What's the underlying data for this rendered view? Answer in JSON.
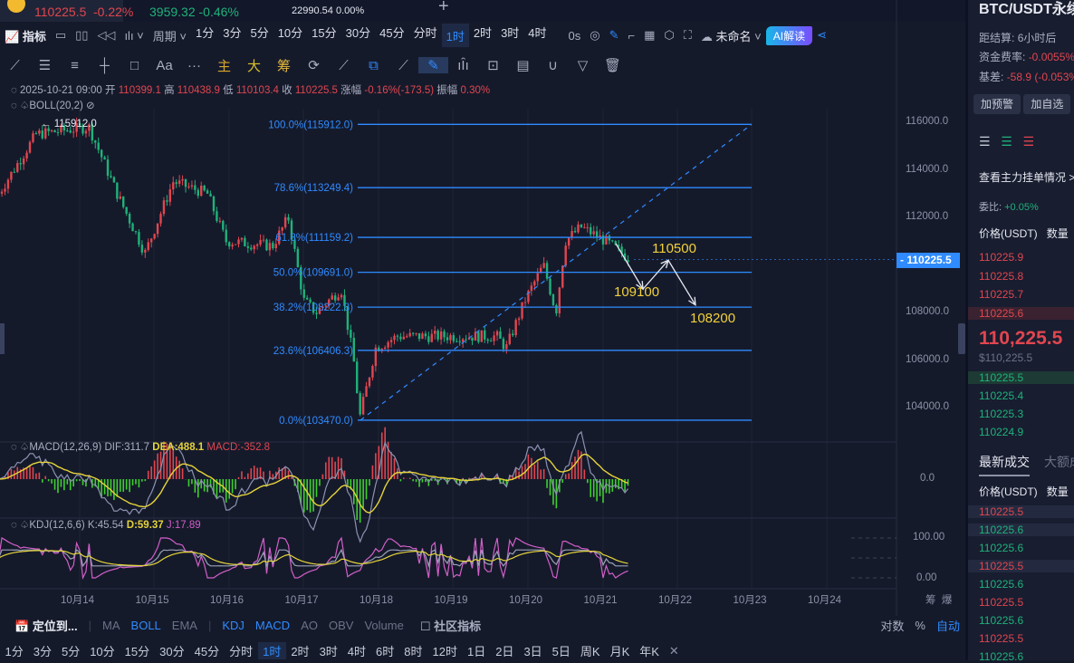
{
  "tabs": [
    {
      "price": "110225.5",
      "change": "-0.22%"
    },
    {
      "price": "3959.32",
      "change": "-0.46%"
    },
    {
      "price": "22990.54",
      "change": "0.00%"
    }
  ],
  "toolbar": {
    "indicator": "指标",
    "period": "周期",
    "timeframes": [
      "1分",
      "3分",
      "5分",
      "10分",
      "15分",
      "30分",
      "45分",
      "分时",
      "1时",
      "2时",
      "3时",
      "4时"
    ],
    "active": "1时",
    "countdown": "0s",
    "layout_name": "未命名",
    "ai": "AI解读"
  },
  "drawing_tools": {
    "main": "主",
    "big": "大",
    "chips": "筹",
    "text": "Aa",
    "more": "···"
  },
  "ohlc": {
    "date": "2025-10-21 09:00",
    "open_label": "开",
    "open": "110399.1",
    "high_label": "高",
    "high": "110438.9",
    "low_label": "低",
    "low": "110103.4",
    "close_label": "收",
    "close": "110225.5",
    "change_label": "涨幅",
    "change": "-0.16%(-173.5)",
    "amp_label": "振幅",
    "amp": "0.30%"
  },
  "boll": "BOLL(20,2)",
  "high_marker": "115912.0",
  "fib": [
    {
      "label": "100.0%(115912.0)",
      "price": 115912.0
    },
    {
      "label": "78.6%(113249.4)",
      "price": 113249.4
    },
    {
      "label": "61.8%(111159.2)",
      "price": 111159.2
    },
    {
      "label": "50.0%(109691.0)",
      "price": 109691.0
    },
    {
      "label": "38.2%(108222.8)",
      "price": 108222.8
    },
    {
      "label": "23.6%(106406.3)",
      "price": 106406.3
    },
    {
      "label": "0.0%(103470.0)",
      "price": 103470.0
    }
  ],
  "targets": [
    {
      "label": "110500",
      "price": 110500
    },
    {
      "label": "109100",
      "price": 109100
    },
    {
      "label": "108200",
      "price": 108200
    }
  ],
  "price_axis": [
    "116000.0",
    "114000.0",
    "112000.0",
    "108000.0",
    "106000.0",
    "104000.0"
  ],
  "current_price": "110225.5",
  "price_keypoints": [
    [
      "10-12 22",
      113000
    ],
    [
      "10-13 10",
      115500
    ],
    [
      "10-14 03",
      115800
    ],
    [
      "10-14 12",
      113000
    ],
    [
      "10-14 21",
      110500
    ],
    [
      "10-15 06",
      113500
    ],
    [
      "10-15 17",
      113000
    ],
    [
      "10-15 23",
      111000
    ],
    [
      "10-16 14",
      110800
    ],
    [
      "10-16 19",
      112000
    ],
    [
      "10-17 00",
      108500
    ],
    [
      "10-17 04",
      108000
    ],
    [
      "10-17 12",
      109000
    ],
    [
      "10-17 16",
      106000
    ],
    [
      "10-17 18",
      103600
    ],
    [
      "10-17 23",
      106500
    ],
    [
      "10-18 06",
      107000
    ],
    [
      "10-19 14",
      107000
    ],
    [
      "10-19 17",
      106500
    ],
    [
      "10-19 23",
      108500
    ],
    [
      "10-20 05",
      110000
    ],
    [
      "10-20 09",
      108000
    ],
    [
      "10-20 12",
      111000
    ],
    [
      "10-20 17",
      111600
    ],
    [
      "10-21 01",
      111000
    ],
    [
      "10-21 09",
      110225.5
    ]
  ],
  "macd": {
    "title": "MACD(12,26,9)",
    "dif": "DIF:311.7",
    "dea": "DEA:488.1",
    "macd": "MACD:-352.8",
    "axis": "0.0"
  },
  "kdj": {
    "title": "KDJ(12,6,6)",
    "k": "K:45.54",
    "d": "D:59.37",
    "j": "J:17.89",
    "axis_top": "100.00",
    "axis_bottom": "0.00"
  },
  "dates": [
    "10月14",
    "10月15",
    "10月16",
    "10月17",
    "10月18",
    "10月19",
    "10月20",
    "10月21",
    "10月22",
    "10月23",
    "10月24"
  ],
  "axis_corner": [
    "筹",
    "爆"
  ],
  "indicator_bar": {
    "locate": "定位到...",
    "items": [
      "MA",
      "BOLL",
      "EMA",
      "KDJ",
      "MACD",
      "AO",
      "OBV",
      "Volume"
    ],
    "active": [
      "BOLL",
      "KDJ",
      "MACD"
    ],
    "community": "社区指标",
    "log": "对数",
    "pct": "%",
    "auto": "自动"
  },
  "timeframe_bar": {
    "items": [
      "1分",
      "3分",
      "5分",
      "10分",
      "15分",
      "30分",
      "45分",
      "分时",
      "1时",
      "2时",
      "3时",
      "4时",
      "6时",
      "8时",
      "12时",
      "1日",
      "2日",
      "3日",
      "5日",
      "周K",
      "月K",
      "年K"
    ],
    "active": "1时"
  },
  "right_panel": {
    "symbol": "BTC/USDT永续",
    "settle_label": "距结算:",
    "settle": "6小时后",
    "funding_label": "资金费率:",
    "funding": "-0.0055%",
    "basis_label": "基差:",
    "basis": "-58.9 (-0.053%)",
    "alert_btn": "加预警",
    "fav_btn": "加自选",
    "orderbook_link": "查看主力挂单情况 >",
    "ratio_label": "委比:",
    "ratio": "+0.05%",
    "col_price": "价格(USDT)",
    "col_qty": "数量",
    "asks": [
      "110225.9",
      "110225.8",
      "110225.7",
      "110225.6"
    ],
    "last": "110,225.5",
    "last_usd": "$110,225.5",
    "bids": [
      "110225.5",
      "110225.4",
      "110225.3",
      "110224.9"
    ],
    "trades_tab": "最新成交",
    "big_tab": "大额成交",
    "trades": [
      [
        "110225.5",
        "sell"
      ],
      [
        "110225.6",
        "buy"
      ],
      [
        "110225.6",
        "buy"
      ],
      [
        "110225.5",
        "sell"
      ],
      [
        "110225.6",
        "buy"
      ],
      [
        "110225.5",
        "sell"
      ],
      [
        "110225.6",
        "buy"
      ],
      [
        "110225.5",
        "sell"
      ],
      [
        "110225.6",
        "buy"
      ]
    ]
  },
  "colors": {
    "up": "#e0464f",
    "down": "#1fb27a",
    "fib": "#2f8bff",
    "target": "#f2d13a",
    "bg": "#151a2b"
  }
}
